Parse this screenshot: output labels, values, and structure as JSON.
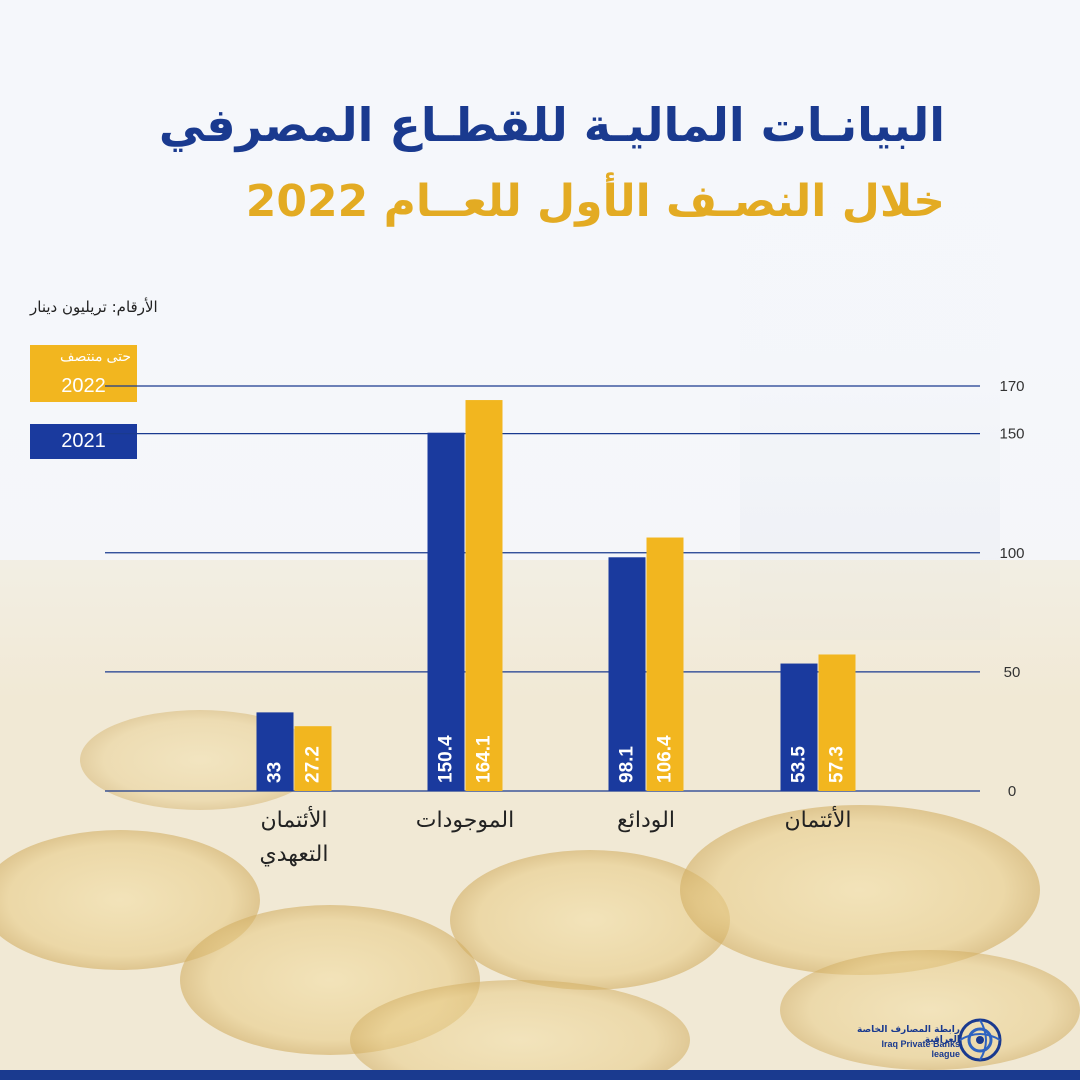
{
  "title": "البيانـات الماليـة للقطـاع المصرفي",
  "subtitle": "خلال النصـف الأول للعــام 2022",
  "units_note": "الأرقام: تريليون دينار",
  "legend": {
    "s2022_line1": "حتى منتصف",
    "s2022_line2": "2022",
    "s2021": "2021"
  },
  "logo": {
    "arabic": "رابطة المصارف الخاصة العراقية",
    "english": "Iraq Private Banks league"
  },
  "colors": {
    "s2021": "#1a3a9e",
    "s2022": "#f2b61f",
    "title": "#1a3a8f",
    "subtitle": "#e3ab23"
  },
  "chart_data": {
    "type": "bar",
    "categories": [
      "الأئتمان",
      "الودائع",
      "الموجودات",
      "الأئتمان التعهدي"
    ],
    "series": [
      {
        "name": "2021",
        "values": [
          53.5,
          98.1,
          150.4,
          33
        ],
        "labels": [
          "53.5",
          "98.1",
          "150.4",
          "33"
        ]
      },
      {
        "name": "حتى منتصف 2022",
        "values": [
          57.3,
          106.4,
          164.1,
          27.2
        ],
        "labels": [
          "57.3",
          "106.4",
          "164.1",
          "27.2"
        ]
      }
    ],
    "yticks": [
      "0",
      "50",
      "100",
      "150",
      "170"
    ],
    "ylim": [
      0,
      170
    ],
    "ytick_values": [
      0,
      50,
      100,
      150,
      170
    ],
    "grid": true,
    "legend_position": "top-left",
    "category_order": "right-to-left"
  }
}
